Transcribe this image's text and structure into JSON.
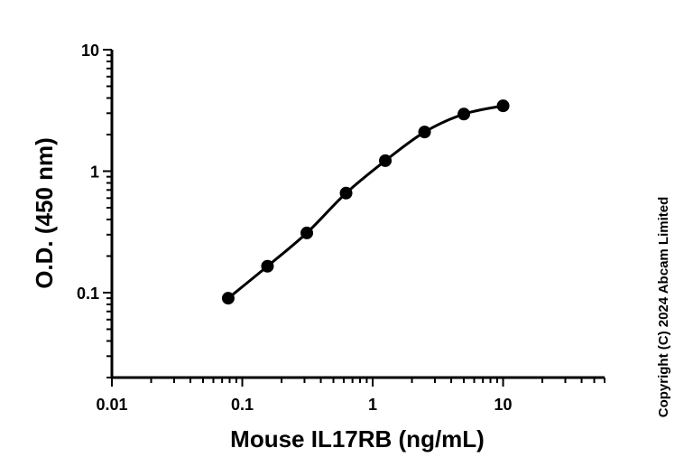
{
  "chart_data": {
    "type": "scatter",
    "xlabel": "Mouse IL17RB (ng/mL)",
    "ylabel": "O.D. (450 nm)",
    "xscale": "log",
    "yscale": "log",
    "xlim": [
      0.01,
      60
    ],
    "ylim": [
      0.02,
      10
    ],
    "x_ticks": [
      0.01,
      0.1,
      1,
      10
    ],
    "x_tick_labels": [
      "0.01",
      "0.1",
      "1",
      "10"
    ],
    "y_ticks": [
      0.1,
      1,
      10
    ],
    "y_tick_labels": [
      "0.1",
      "1",
      "10"
    ],
    "grid": false,
    "series": [
      {
        "points": [
          {
            "x": 0.078,
            "y": 0.09
          },
          {
            "x": 0.156,
            "y": 0.165
          },
          {
            "x": 0.3125,
            "y": 0.31
          },
          {
            "x": 0.625,
            "y": 0.66
          },
          {
            "x": 1.25,
            "y": 1.22
          },
          {
            "x": 2.5,
            "y": 2.1
          },
          {
            "x": 5,
            "y": 2.95
          },
          {
            "x": 10,
            "y": 3.45
          }
        ],
        "fit": "4PL curve",
        "color": "#000000"
      }
    ]
  },
  "copyright": "Copyright (C) 2024 Abcam Limited"
}
